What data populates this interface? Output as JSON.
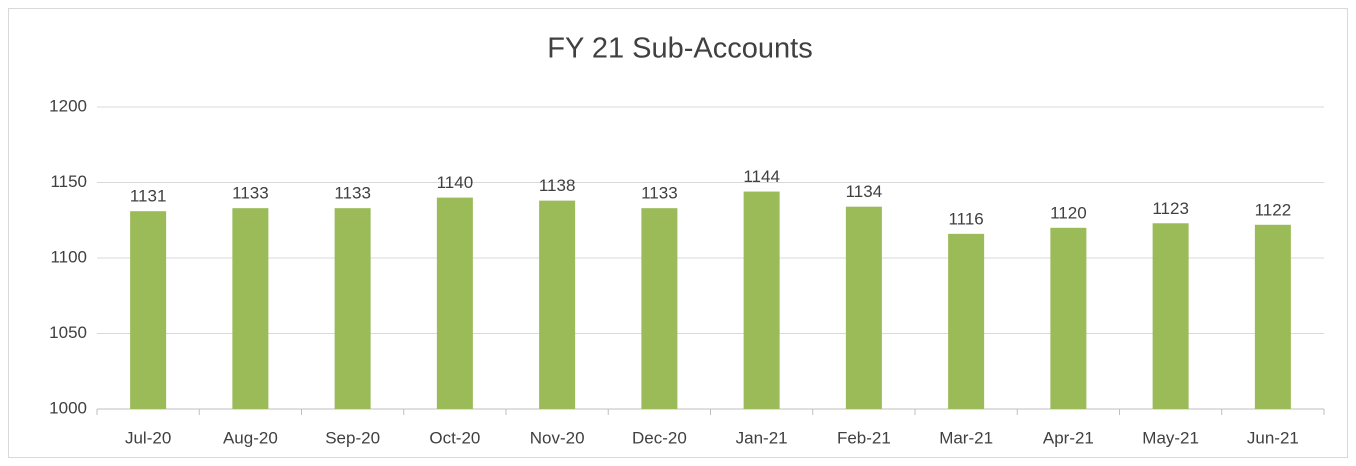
{
  "chart_data": {
    "type": "bar",
    "title": "FY 21 Sub-Accounts",
    "categories": [
      "Jul-20",
      "Aug-20",
      "Sep-20",
      "Oct-20",
      "Nov-20",
      "Dec-20",
      "Jan-21",
      "Feb-21",
      "Mar-21",
      "Apr-21",
      "May-21",
      "Jun-21"
    ],
    "values": [
      1131,
      1133,
      1133,
      1140,
      1138,
      1133,
      1144,
      1134,
      1116,
      1120,
      1123,
      1122
    ],
    "color": "#9bbb59",
    "ylim": [
      1000,
      1200
    ],
    "yticks": [
      1000,
      1050,
      1100,
      1150,
      1200
    ],
    "grid": true
  }
}
